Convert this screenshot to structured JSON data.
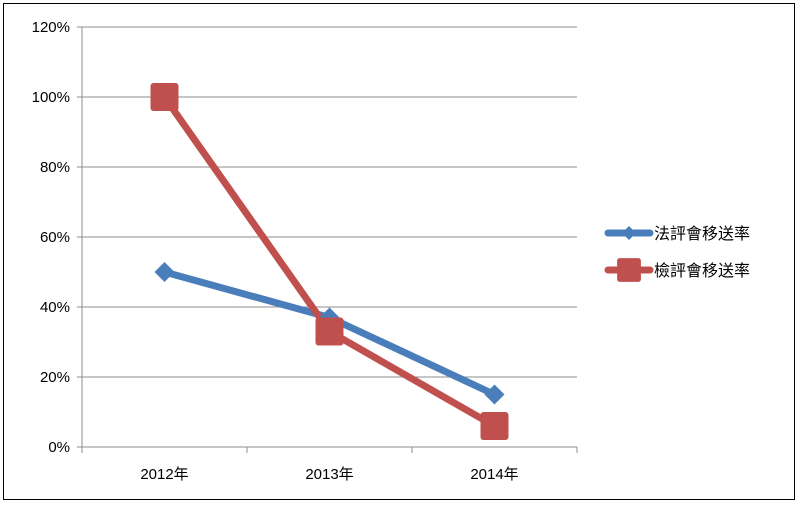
{
  "chart_data": {
    "type": "line",
    "categories": [
      "2012年",
      "2013年",
      "2014年"
    ],
    "series": [
      {
        "name": "法評會移送率",
        "values": [
          50,
          37,
          15
        ],
        "color": "#4a7ebb",
        "marker": "diamond"
      },
      {
        "name": "檢評會移送率",
        "values": [
          100,
          33,
          6
        ],
        "color": "#c0504d",
        "marker": "square"
      }
    ],
    "y_tick_labels": [
      "0%",
      "20%",
      "40%",
      "60%",
      "80%",
      "100%",
      "120%"
    ],
    "y_ticks": [
      0,
      20,
      40,
      60,
      80,
      100,
      120
    ],
    "ylim": [
      0,
      120
    ],
    "grid": true,
    "legend_position": "right"
  }
}
